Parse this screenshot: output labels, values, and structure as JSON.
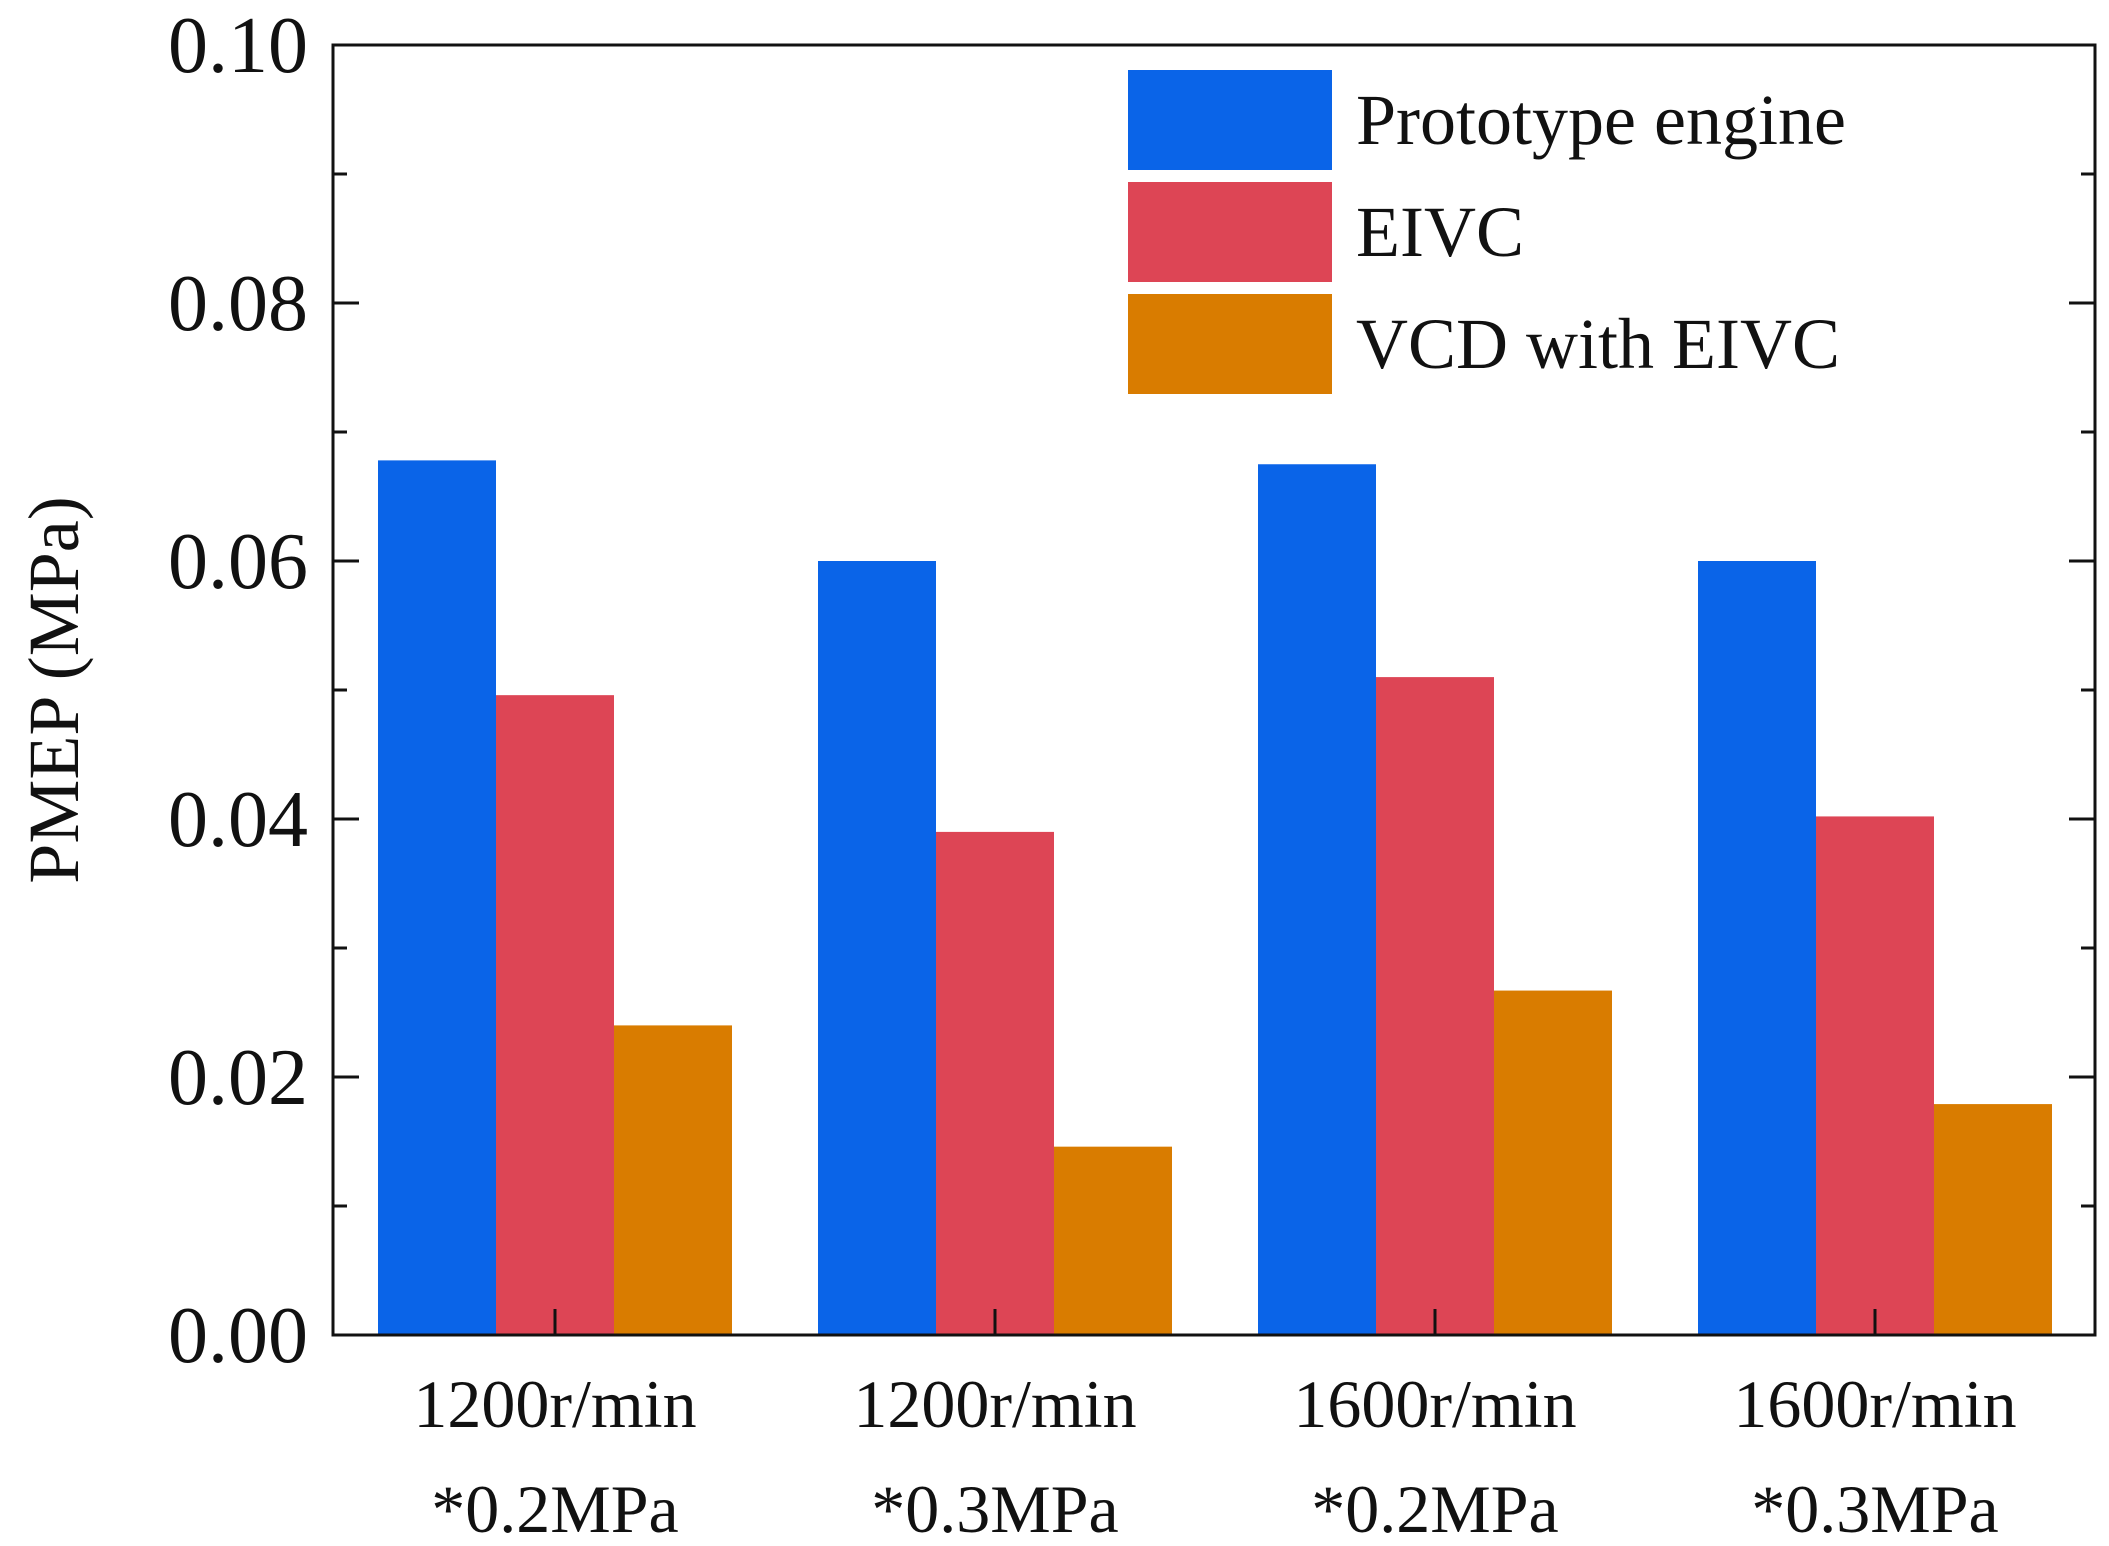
{
  "chart_data": {
    "type": "bar",
    "title": "",
    "xlabel": "",
    "ylabel": "PMEP (MPa)",
    "ylim": [
      0,
      0.1
    ],
    "yticks": [
      "0.00",
      "0.02",
      "0.04",
      "0.06",
      "0.08",
      "0.10"
    ],
    "ytick_values": [
      0,
      0.02,
      0.04,
      0.06,
      0.08,
      0.1
    ],
    "categories": [
      [
        "1200r/min",
        "*0.2MPa"
      ],
      [
        "1200r/min",
        "*0.3MPa"
      ],
      [
        "1600r/min",
        "*0.2MPa"
      ],
      [
        "1600r/min",
        "*0.3MPa"
      ]
    ],
    "series": [
      {
        "name": "Prototype engine",
        "color": "#0A64E8",
        "values": [
          0.0678,
          0.06,
          0.0675,
          0.06
        ]
      },
      {
        "name": "EIVC",
        "color": "#DD4555",
        "values": [
          0.0496,
          0.039,
          0.051,
          0.0402
        ]
      },
      {
        "name": "VCD with EIVC",
        "color": "#D97C00",
        "values": [
          0.024,
          0.0146,
          0.0267,
          0.0179
        ]
      }
    ],
    "grid": false,
    "legend_position": "top-right"
  }
}
